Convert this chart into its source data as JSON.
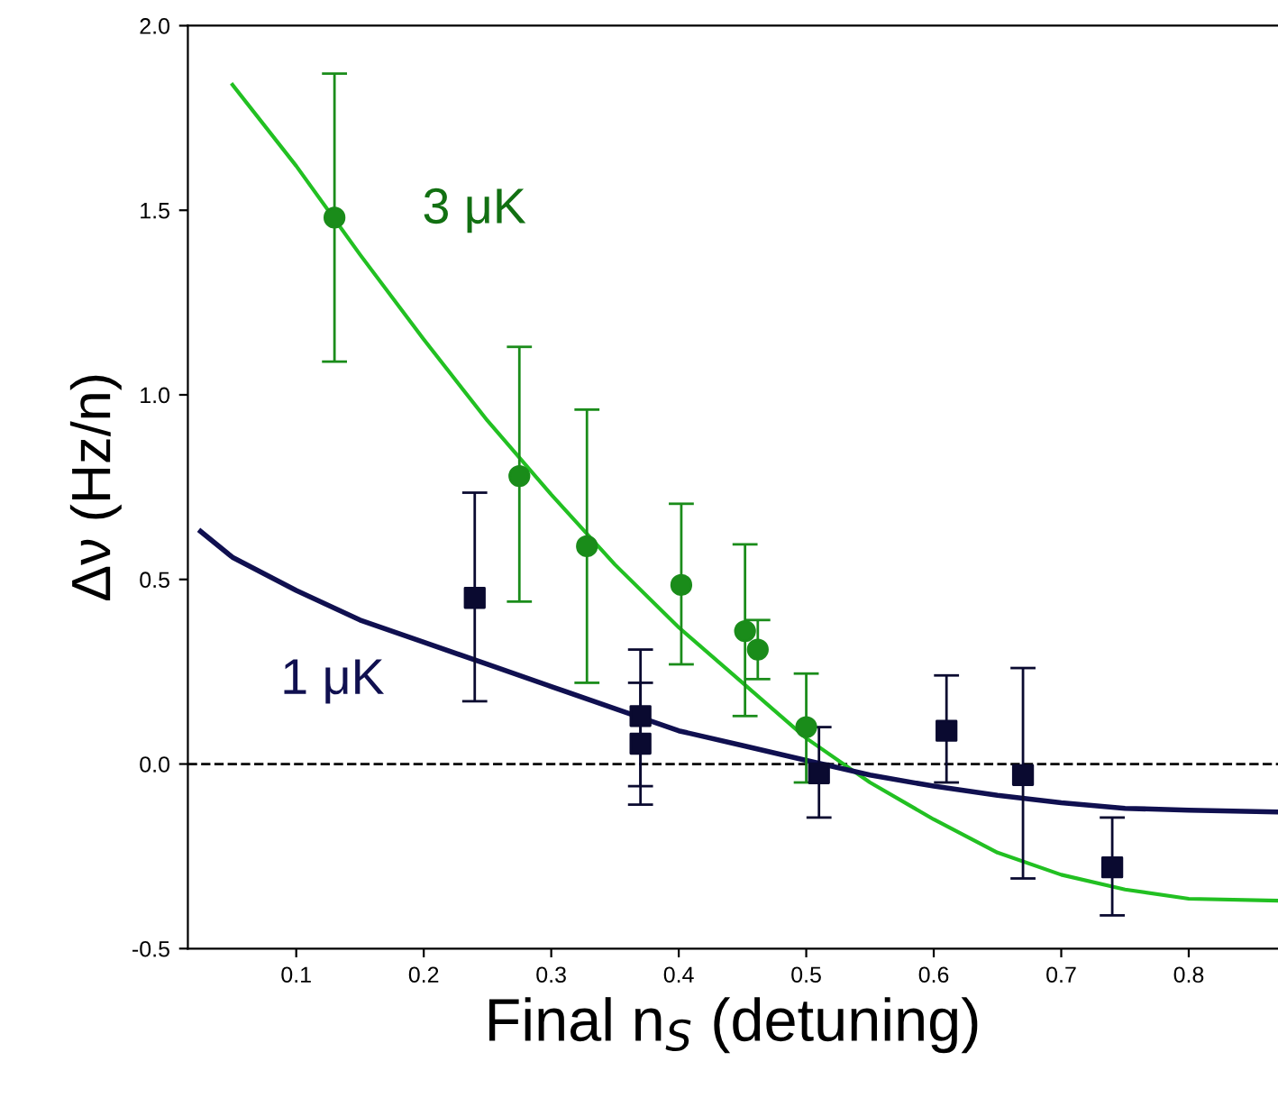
{
  "chart_data": {
    "type": "scatter",
    "xlabel": "Final n$_{S}$ (detuning)",
    "ylabel": "Δν (Hz/n)",
    "xlim": [
      0.015,
      0.87
    ],
    "ylim": [
      -0.5,
      2.0
    ],
    "xticks": [
      0.1,
      0.2,
      0.3,
      0.4,
      0.5,
      0.6,
      0.7,
      0.8
    ],
    "yticks": [
      {
        "value": -0.5,
        "label": "-0.5"
      },
      {
        "value": 0,
        "label": "0.0"
      },
      0.5,
      {
        "value": 1,
        "label": "1.0"
      },
      1.5,
      {
        "value": 2,
        "label": "2.0"
      }
    ],
    "grid": false,
    "legend": false,
    "ref_lines": [
      {
        "axis": "y",
        "value": 0,
        "line_style": "dashed",
        "color": "#000000"
      }
    ],
    "series": [
      {
        "type": "line",
        "name": "3 μK",
        "color": "#22c022",
        "marker": "none",
        "line_style": "solid",
        "x": [
          0.05,
          0.1,
          0.15,
          0.2,
          0.25,
          0.3,
          0.35,
          0.4,
          0.45,
          0.5,
          0.55,
          0.6,
          0.65,
          0.7,
          0.75,
          0.8,
          0.87
        ],
        "values": [
          1.84,
          1.62,
          1.38,
          1.15,
          0.93,
          0.73,
          0.54,
          0.37,
          0.22,
          0.07,
          -0.05,
          -0.15,
          -0.24,
          -0.3,
          -0.34,
          -0.365,
          -0.37
        ]
      },
      {
        "type": "line",
        "name": "1 μK",
        "color": "#101050",
        "marker": "none",
        "line_style": "solid",
        "x": [
          0.025,
          0.05,
          0.1,
          0.15,
          0.2,
          0.25,
          0.3,
          0.35,
          0.4,
          0.45,
          0.5,
          0.55,
          0.6,
          0.65,
          0.7,
          0.75,
          0.8,
          0.87
        ],
        "values": [
          0.63,
          0.56,
          0.47,
          0.39,
          0.33,
          0.27,
          0.21,
          0.15,
          0.09,
          0.05,
          0.01,
          -0.03,
          -0.06,
          -0.085,
          -0.105,
          -0.12,
          -0.125,
          -0.13
        ]
      },
      {
        "color": "#1a8c1a",
        "marker": "circle",
        "x": [
          0.13,
          0.275,
          0.328,
          0.402,
          0.452,
          0.462,
          0.5
        ],
        "values": [
          1.48,
          0.78,
          0.59,
          0.485,
          0.36,
          0.31,
          0.1
        ],
        "errors": [
          [
            1.09,
            1.87
          ],
          [
            0.44,
            1.13
          ],
          [
            0.22,
            0.96
          ],
          [
            0.27,
            0.705
          ],
          [
            0.13,
            0.595
          ],
          [
            0.23,
            0.39
          ],
          [
            -0.05,
            0.245
          ]
        ]
      },
      {
        "color": "#0a0a30",
        "marker": "square",
        "x": [
          0.24,
          0.37,
          0.37,
          0.51,
          0.61,
          0.67,
          0.74
        ],
        "values": [
          0.45,
          0.13,
          0.055,
          -0.025,
          0.09,
          -0.03,
          -0.28
        ],
        "errors": [
          [
            0.17,
            0.735
          ],
          [
            -0.06,
            0.31
          ],
          [
            -0.11,
            0.22
          ],
          [
            -0.145,
            0.1
          ],
          [
            -0.05,
            0.24
          ],
          [
            -0.31,
            0.26
          ],
          [
            -0.41,
            -0.145
          ]
        ]
      }
    ]
  }
}
